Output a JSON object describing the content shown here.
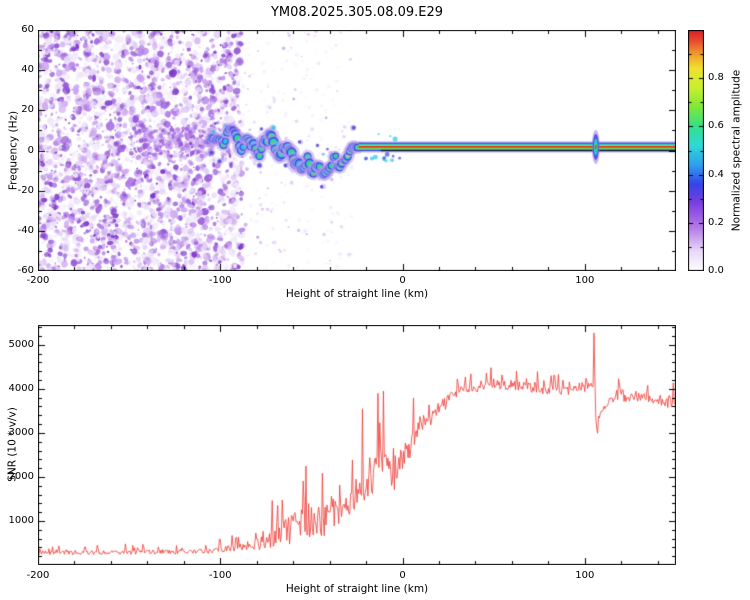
{
  "chart_data": [
    {
      "type": "heatmap",
      "title": "YM08.2025.305.08.09.E29",
      "xlabel": "Height of straight line (km)",
      "ylabel": "Frequency (Hz)",
      "xlim": [
        -200,
        150
      ],
      "ylim": [
        -60,
        60
      ],
      "xticks": [
        -200,
        -100,
        0,
        100
      ],
      "xminor_step": 20,
      "yticks": [
        -60,
        -40,
        -20,
        0,
        20,
        40,
        60
      ],
      "yminor_step": 10,
      "noise_region_km": [
        -200,
        -88
      ],
      "sparse_noise_km": [
        -88,
        -28
      ],
      "signal_trace": {
        "description": "Doppler trace: scattered beaded signal from -106 to -24 km wandering between about +12 and -13 Hz, then a tight high-amplitude horizontal band near +2 Hz from -24 to 150 km with a dark zero-Hz line and a vertical disturbance blip near 106 km",
        "keypoints_km_hz_intensity_spread": [
          [
            -106,
            4,
            0.5,
            2.5
          ],
          [
            -102,
            6,
            0.55,
            2.5
          ],
          [
            -99,
            3,
            0.6,
            3
          ],
          [
            -96,
            8,
            0.55,
            3
          ],
          [
            -93,
            12,
            0.5,
            3
          ],
          [
            -91,
            5,
            0.65,
            3.5
          ],
          [
            -88,
            1,
            0.6,
            4
          ],
          [
            -85,
            6,
            0.7,
            4
          ],
          [
            -82,
            3,
            0.68,
            4
          ],
          [
            -79,
            -2,
            0.65,
            4
          ],
          [
            -76,
            4,
            0.78,
            4
          ],
          [
            -73,
            8,
            0.7,
            4.5
          ],
          [
            -70,
            2,
            0.75,
            5
          ],
          [
            -67,
            -3,
            0.7,
            5
          ],
          [
            -64,
            3,
            0.78,
            5
          ],
          [
            -61,
            -1,
            0.75,
            5
          ],
          [
            -58,
            -6,
            0.7,
            5
          ],
          [
            -55,
            -10,
            0.65,
            5
          ],
          [
            -52,
            -4,
            0.72,
            4.5
          ],
          [
            -49,
            -12,
            0.62,
            4.5
          ],
          [
            -46,
            -7,
            0.7,
            4
          ],
          [
            -43,
            -13,
            0.58,
            4
          ],
          [
            -40,
            -8,
            0.7,
            4
          ],
          [
            -37,
            -4,
            0.8,
            3.5
          ],
          [
            -34,
            -9,
            0.72,
            3
          ],
          [
            -31,
            -3,
            0.85,
            3
          ],
          [
            -28,
            0,
            0.9,
            2.5
          ],
          [
            -25,
            2,
            0.95,
            2
          ],
          [
            -20,
            2,
            1,
            1.5
          ],
          [
            -10,
            1.8,
            1,
            1
          ],
          [
            0,
            1.8,
            1,
            1
          ],
          [
            150,
            1.8,
            1,
            1
          ]
        ],
        "band_center_hz": 1.8,
        "band_start_km": -24,
        "zero_line_hz": 0,
        "zero_line_km": [
          -12,
          150
        ],
        "blip_km": 106
      },
      "colorbar": {
        "label": "Normalized spectral amplitude",
        "ticks": [
          0,
          0.2,
          0.4,
          0.6,
          0.8
        ],
        "minor_step": 0.1,
        "range": [
          0,
          1
        ],
        "gradient_stops": [
          [
            0,
            "#ffffff"
          ],
          [
            0.08,
            "#ead9f8"
          ],
          [
            0.18,
            "#b57ae8"
          ],
          [
            0.28,
            "#7d3fe0"
          ],
          [
            0.36,
            "#3544e8"
          ],
          [
            0.44,
            "#2e9ff0"
          ],
          [
            0.52,
            "#2ed8d8"
          ],
          [
            0.6,
            "#35e08a"
          ],
          [
            0.68,
            "#7fe83a"
          ],
          [
            0.76,
            "#c8f02e"
          ],
          [
            0.84,
            "#f0e22e"
          ],
          [
            0.9,
            "#f09c2e"
          ],
          [
            0.96,
            "#e8442e"
          ],
          [
            1,
            "#d81f28"
          ]
        ]
      }
    },
    {
      "type": "line",
      "xlabel": "Height of straight line (km)",
      "ylabel": "SNR (10 * v/v)",
      "xlim": [
        -200,
        150
      ],
      "ylim": [
        0,
        5450
      ],
      "xticks": [
        -200,
        -100,
        0,
        100
      ],
      "xminor_step": 20,
      "yticks": [
        1000,
        2000,
        3000,
        4000,
        5000
      ],
      "yminor_step": 200,
      "line_color": "#ee3a33",
      "series_keypoints_km_snr_noise": [
        [
          -200,
          280,
          170
        ],
        [
          -160,
          285,
          170
        ],
        [
          -120,
          295,
          180
        ],
        [
          -108,
          310,
          190
        ],
        [
          -98,
          350,
          230
        ],
        [
          -90,
          400,
          320
        ],
        [
          -82,
          450,
          430
        ],
        [
          -76,
          520,
          600
        ],
        [
          -70,
          650,
          950
        ],
        [
          -64,
          750,
          1150
        ],
        [
          -58,
          900,
          1350
        ],
        [
          -52,
          1000,
          1500
        ],
        [
          -46,
          950,
          1450
        ],
        [
          -40,
          1100,
          1550
        ],
        [
          -34,
          1300,
          1600
        ],
        [
          -28,
          1350,
          1450
        ],
        [
          -22,
          1800,
          1600
        ],
        [
          -16,
          2100,
          1650
        ],
        [
          -10,
          2300,
          1700
        ],
        [
          -4,
          2100,
          1650
        ],
        [
          0,
          2400,
          1400
        ],
        [
          5,
          2800,
          1100
        ],
        [
          10,
          3100,
          900
        ],
        [
          16,
          3350,
          750
        ],
        [
          22,
          3600,
          620
        ],
        [
          28,
          3850,
          500
        ],
        [
          34,
          4000,
          430
        ],
        [
          45,
          4050,
          400
        ],
        [
          55,
          4100,
          400
        ],
        [
          65,
          4050,
          400
        ],
        [
          78,
          3980,
          390
        ],
        [
          90,
          3950,
          380
        ],
        [
          100,
          4000,
          360
        ],
        [
          104.5,
          4100,
          250
        ],
        [
          105,
          5250,
          80
        ],
        [
          106,
          3350,
          260
        ],
        [
          107,
          2950,
          260
        ],
        [
          108.5,
          3500,
          320
        ],
        [
          115,
          3800,
          380
        ],
        [
          125,
          3820,
          380
        ],
        [
          138,
          3750,
          390
        ],
        [
          150,
          3620,
          420
        ]
      ]
    }
  ]
}
